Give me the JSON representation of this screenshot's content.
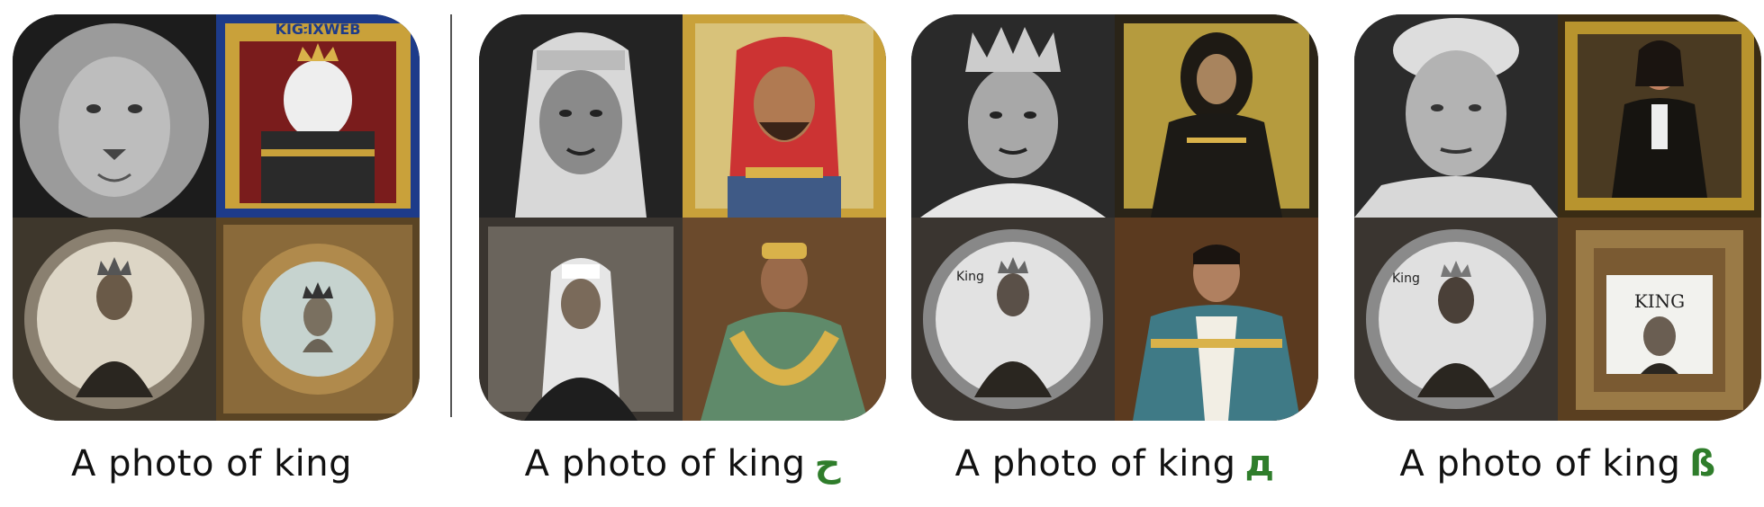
{
  "panels": [
    {
      "caption": "A photo of king",
      "suffix": "",
      "tiles": [
        {
          "label": "",
          "tint": "#8a8a8a",
          "bg": "#1c1c1c",
          "subject": "lion"
        },
        {
          "label": "KIG꧇IXWEB",
          "tint": "#c9a13a",
          "bg": "#1d3b8a",
          "subject": "dog-king"
        },
        {
          "label": "",
          "tint": "#6a6256",
          "bg": "#3e372c",
          "subject": "crowned-man-round"
        },
        {
          "label": "",
          "tint": "#b08a4c",
          "bg": "#5a4424",
          "subject": "crowned-man-frame"
        }
      ]
    },
    {
      "caption": "A photo of king",
      "suffix": "ح",
      "tiles": [
        {
          "label": "",
          "tint": "#9a9a9a",
          "bg": "#232323",
          "subject": "headdress-man"
        },
        {
          "label": "",
          "tint": "#c33",
          "bg": "#c9a13a",
          "subject": "red-keffiyeh"
        },
        {
          "label": "",
          "tint": "#7a7a7a",
          "bg": "#3a3530",
          "subject": "seated-sheikh"
        },
        {
          "label": "",
          "tint": "#5f8a6a",
          "bg": "#6b4a2c",
          "subject": "robed-man-gold"
        }
      ]
    },
    {
      "caption": "A photo of king",
      "suffix": "д",
      "tiles": [
        {
          "label": "",
          "tint": "#999",
          "bg": "#2a2a2a",
          "subject": "crowned-bw"
        },
        {
          "label": "",
          "tint": "#b59b3e",
          "bg": "#2a2418",
          "subject": "long-hair-robed"
        },
        {
          "label": "King",
          "tint": "#777",
          "bg": "#3a3530",
          "subject": "crowned-round"
        },
        {
          "label": "",
          "tint": "#3f7a86",
          "bg": "#5b3a1f",
          "subject": "teal-robe"
        }
      ]
    },
    {
      "caption": "A photo of king",
      "suffix": "ß",
      "tiles": [
        {
          "label": "",
          "tint": "#aaa",
          "bg": "#2b2b2b",
          "subject": "old-man-bw"
        },
        {
          "label": "",
          "tint": "#b8942e",
          "bg": "#3a2c14",
          "subject": "painting-portrait"
        },
        {
          "label": "King",
          "tint": "#777",
          "bg": "#3a3530",
          "subject": "crowned-round-2"
        },
        {
          "label": "KING",
          "tint": "#9a7a46",
          "bg": "#5a3f20",
          "subject": "framed-king"
        }
      ]
    }
  ]
}
